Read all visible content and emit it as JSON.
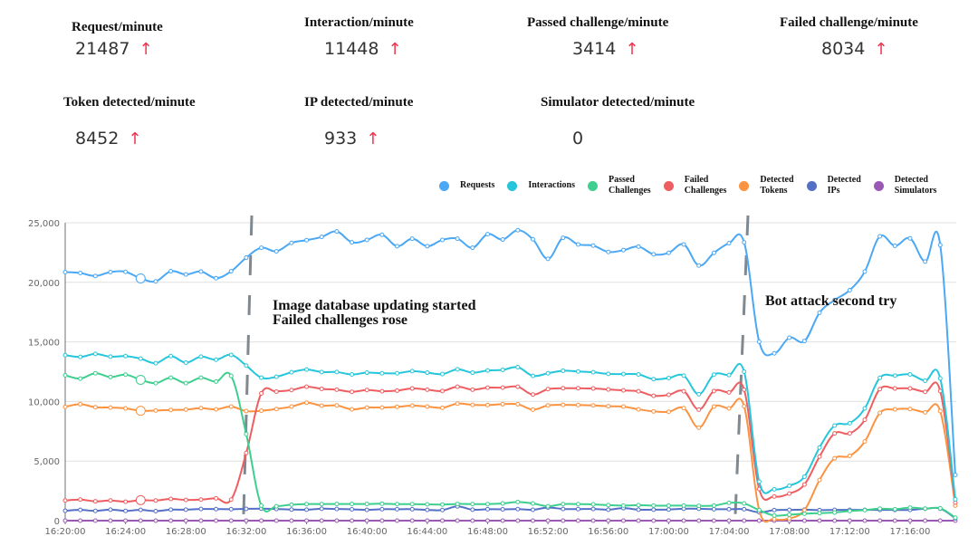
{
  "kpis": [
    {
      "title": "Request/minute",
      "value": "21487",
      "trend": "up"
    },
    {
      "title": "Interaction/minute",
      "value": "11448",
      "trend": "up"
    },
    {
      "title": "Passed challenge/minute",
      "value": "3414",
      "trend": "up"
    },
    {
      "title": "Failed challenge/minute",
      "value": "8034",
      "trend": "up"
    },
    {
      "title": "Token detected/minute",
      "value": "8452",
      "trend": "up"
    },
    {
      "title": "IP detected/minute",
      "value": "933",
      "trend": "up"
    },
    {
      "title": "Simulator detected/minute",
      "value": "0",
      "trend": "none"
    }
  ],
  "arrow_glyph": "↑",
  "chart_data": {
    "type": "line",
    "title": "",
    "xlabel": "",
    "ylabel": "",
    "ylim": [
      0,
      25000
    ],
    "yticks": [
      "0",
      "5,000",
      "10,000",
      "15,000",
      "20,000",
      "25,000"
    ],
    "ytick_values": [
      0,
      5000,
      10000,
      15000,
      20000,
      25000
    ],
    "xticks": [
      "16:20:00",
      "16:24:00",
      "16:28:00",
      "16:32:00",
      "16:36:00",
      "16:40:00",
      "16:44:00",
      "16:48:00",
      "16:52:00",
      "16:56:00",
      "17:00:00",
      "17:04:00",
      "17:08:00",
      "17:12:00",
      "17:16:00"
    ],
    "x_start": "16:20:00",
    "x_step_minutes": 1,
    "grid": true,
    "legend_placement": "top-right",
    "highlight_index": 5,
    "series": [
      {
        "name": "Requests",
        "color": "#4aa8f5",
        "values": [
          20860,
          20780,
          20530,
          20860,
          20880,
          20330,
          20080,
          20930,
          20660,
          20910,
          20350,
          20930,
          22070,
          22900,
          22600,
          23310,
          23540,
          23810,
          24270,
          23360,
          23560,
          23990,
          23030,
          23660,
          23030,
          23560,
          23660,
          22900,
          24040,
          23590,
          24370,
          23610,
          21970,
          23740,
          23180,
          23080,
          22550,
          22700,
          23000,
          22350,
          22470,
          23180,
          21410,
          22470,
          23280,
          23360,
          15020,
          14040,
          15350,
          15070,
          17450,
          18510,
          19340,
          20910,
          23860,
          23060,
          23690,
          21740,
          23130,
          3840
        ]
      },
      {
        "name": "Interactions",
        "color": "#26c6da",
        "values": [
          13890,
          13740,
          13990,
          13760,
          13810,
          13590,
          13210,
          13810,
          13260,
          13760,
          13510,
          13910,
          13010,
          12000,
          12070,
          12450,
          12680,
          12470,
          12470,
          12270,
          12420,
          12370,
          12370,
          12550,
          12420,
          12300,
          12700,
          12420,
          12600,
          12650,
          12880,
          12150,
          12370,
          12580,
          12520,
          12450,
          12320,
          12300,
          12270,
          11870,
          11970,
          12170,
          10610,
          12250,
          12220,
          12500,
          3280,
          2630,
          2930,
          3690,
          6140,
          7980,
          8180,
          9420,
          11990,
          12170,
          12270,
          11740,
          11940,
          1790
        ]
      },
      {
        "name": "Passed Challenges",
        "color": "#3ecf8e",
        "values": [
          12200,
          11920,
          12370,
          12050,
          12250,
          11820,
          11540,
          12000,
          11540,
          12000,
          11670,
          12150,
          7270,
          1260,
          1210,
          1340,
          1390,
          1390,
          1400,
          1400,
          1400,
          1420,
          1390,
          1390,
          1370,
          1350,
          1400,
          1390,
          1390,
          1440,
          1570,
          1440,
          1210,
          1390,
          1390,
          1370,
          1300,
          1260,
          1300,
          1260,
          1260,
          1260,
          1240,
          1260,
          1490,
          1440,
          880,
          430,
          500,
          580,
          630,
          680,
          810,
          880,
          1010,
          960,
          1090,
          1010,
          1040,
          250
        ]
      },
      {
        "name": "Failed Challenges",
        "color": "#ee5e61",
        "values": [
          1690,
          1770,
          1620,
          1690,
          1590,
          1720,
          1690,
          1820,
          1740,
          1770,
          1870,
          1770,
          5680,
          10680,
          10830,
          10960,
          11240,
          11060,
          10990,
          10810,
          10960,
          10860,
          10910,
          11090,
          10990,
          10880,
          11240,
          10990,
          11160,
          11160,
          11240,
          10580,
          11040,
          11110,
          11110,
          11090,
          11010,
          10930,
          10860,
          10480,
          10560,
          10860,
          9320,
          10880,
          10760,
          10990,
          2650,
          2020,
          2270,
          3030,
          5380,
          7320,
          7320,
          8460,
          11040,
          11090,
          11090,
          10810,
          10880,
          1520
        ]
      },
      {
        "name": "Detected Tokens",
        "color": "#fb9341",
        "values": [
          9550,
          9770,
          9520,
          9490,
          9420,
          9220,
          9240,
          9290,
          9320,
          9440,
          9340,
          9570,
          9190,
          9220,
          9370,
          9570,
          9900,
          9650,
          9670,
          9340,
          9490,
          9490,
          9550,
          9650,
          9570,
          9470,
          9820,
          9720,
          9700,
          9770,
          9770,
          9320,
          9670,
          9720,
          9700,
          9670,
          9600,
          9570,
          9340,
          9170,
          9140,
          9440,
          7800,
          9570,
          9420,
          9600,
          880,
          130,
          180,
          880,
          3410,
          5230,
          5430,
          6640,
          9040,
          9340,
          9370,
          9090,
          9190,
          1260
        ]
      },
      {
        "name": "Detected IPs",
        "color": "#5470c6",
        "values": [
          830,
          900,
          820,
          920,
          820,
          900,
          800,
          920,
          920,
          980,
          970,
          960,
          990,
          1010,
          980,
          930,
          920,
          1000,
          980,
          950,
          900,
          960,
          960,
          960,
          900,
          890,
          1200,
          920,
          960,
          950,
          970,
          910,
          1100,
          980,
          970,
          980,
          920,
          1050,
          920,
          920,
          930,
          1000,
          1000,
          960,
          960,
          960,
          700,
          880,
          900,
          920,
          880,
          900,
          900,
          900,
          900,
          900,
          900,
          1000,
          1010,
          200
        ]
      },
      {
        "name": "Detected Simulators",
        "color": "#9b59b6",
        "values": [
          0,
          0,
          0,
          0,
          0,
          0,
          0,
          0,
          0,
          0,
          0,
          0,
          0,
          0,
          0,
          0,
          0,
          0,
          0,
          0,
          0,
          0,
          0,
          0,
          0,
          0,
          0,
          0,
          0,
          0,
          0,
          0,
          0,
          0,
          0,
          0,
          0,
          0,
          0,
          0,
          0,
          0,
          0,
          0,
          0,
          0,
          0,
          0,
          0,
          0,
          0,
          0,
          0,
          0,
          0,
          0,
          0,
          0,
          0,
          0
        ]
      }
    ],
    "legend": [
      "Requests",
      "Interactions",
      "Passed\nChallenges",
      "Failed\nChallenges",
      "Detected\nTokens",
      "Detected\nIPs",
      "Detected\nSimulators"
    ],
    "annotations": [
      {
        "text": "Image database updating started\nFailed challenges rose",
        "at": "16:32:00"
      },
      {
        "text": "Bot attack second try",
        "at": "17:05:00"
      }
    ]
  }
}
